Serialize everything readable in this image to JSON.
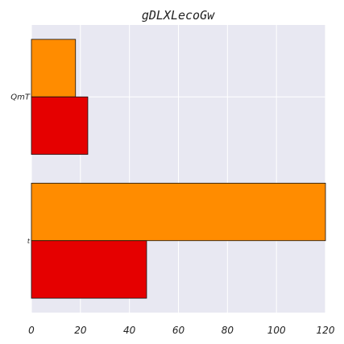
{
  "chart_data": {
    "type": "bar",
    "orientation": "horizontal",
    "title": "gDLXLecoGw",
    "categories": [
      "QmT",
      "t"
    ],
    "series": [
      {
        "values": [
          18,
          120
        ],
        "color": "#ff8c00"
      },
      {
        "values": [
          23,
          47
        ],
        "color": "#e50000"
      }
    ],
    "xlim": [
      0,
      120
    ],
    "xticks": [
      0,
      20,
      40,
      60,
      80,
      100,
      120
    ],
    "grid": true,
    "background": "#e8e8f2",
    "gridColor": "#ffffff"
  }
}
